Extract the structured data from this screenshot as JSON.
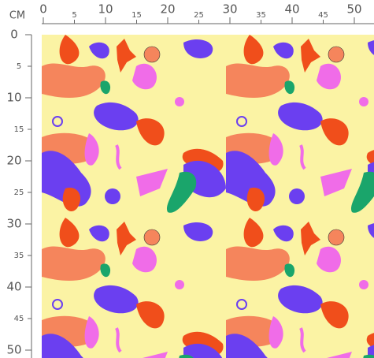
{
  "unit": "CM",
  "top_ruler": {
    "labels": [
      0,
      5,
      10,
      15,
      20,
      25,
      30,
      35,
      40,
      45,
      50
    ]
  },
  "left_ruler": {
    "labels": [
      0,
      5,
      10,
      15,
      20,
      25,
      30,
      35,
      40,
      45,
      50
    ]
  }
}
